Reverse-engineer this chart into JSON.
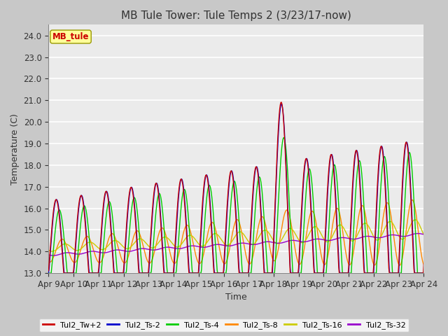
{
  "title": "MB Tule Tower: Tule Temps 2 (3/23/17-now)",
  "xlabel": "Time",
  "ylabel": "Temperature (C)",
  "ylim": [
    13.0,
    24.5
  ],
  "yticks": [
    13.0,
    14.0,
    15.0,
    16.0,
    17.0,
    18.0,
    19.0,
    20.0,
    21.0,
    22.0,
    23.0,
    24.0
  ],
  "xtick_labels": [
    "Apr 9",
    "Apr 10",
    "Apr 11",
    "Apr 12",
    "Apr 13",
    "Apr 14",
    "Apr 15",
    "Apr 16",
    "Apr 17",
    "Apr 18",
    "Apr 19",
    "Apr 20",
    "Apr 21",
    "Apr 22",
    "Apr 23",
    "Apr 24"
  ],
  "colors": {
    "Tul2_Tw+2": "#cc0000",
    "Tul2_Ts-2": "#0000cc",
    "Tul2_Ts-4": "#00cc00",
    "Tul2_Ts-8": "#ff8800",
    "Tul2_Ts-16": "#cccc00",
    "Tul2_Ts-32": "#9900cc"
  },
  "legend_label": "MB_tule",
  "legend_color": "#cc0000",
  "legend_bg": "#ffff99",
  "legend_edge": "#999900",
  "background_color": "#c8c8c8",
  "plot_bg": "#ebebeb",
  "grid_color": "#ffffff",
  "title_fontsize": 11,
  "axis_fontsize": 9,
  "tick_fontsize": 8.5
}
